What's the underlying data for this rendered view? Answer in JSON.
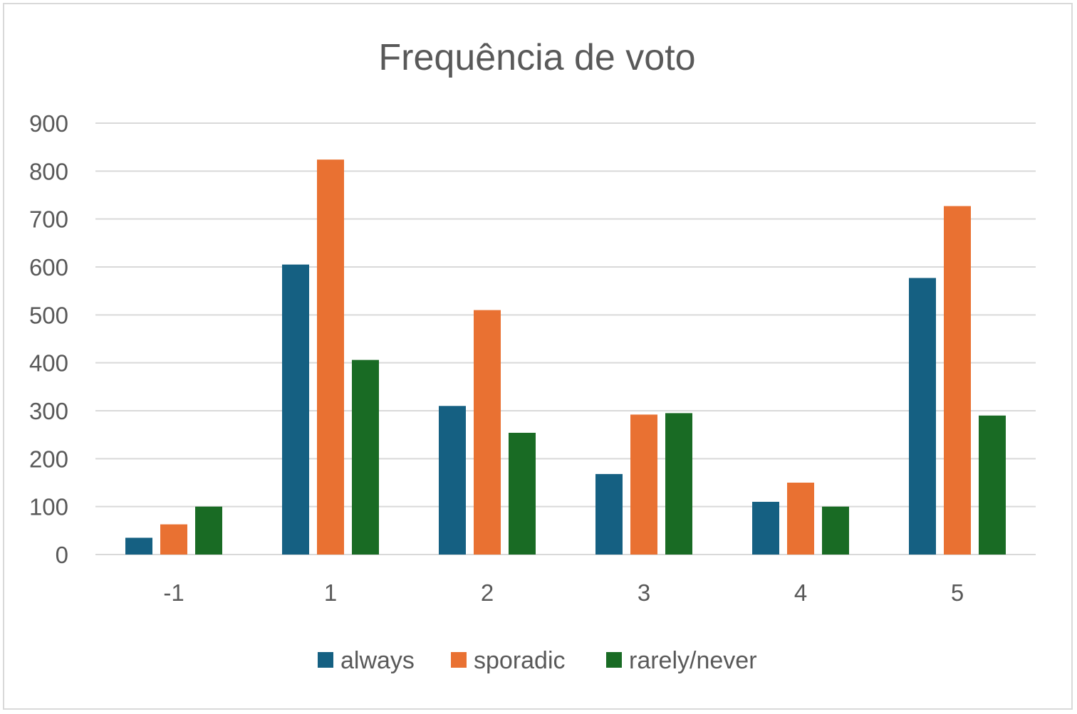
{
  "chart_data": {
    "type": "bar",
    "title": "Frequência de voto",
    "xlabel": "",
    "ylabel": "",
    "categories": [
      "-1",
      "1",
      "2",
      "3",
      "4",
      "5"
    ],
    "series": [
      {
        "name": "always",
        "color": "#156082",
        "values": [
          35,
          605,
          310,
          168,
          110,
          577
        ]
      },
      {
        "name": "sporadic",
        "color": "#E97132",
        "values": [
          63,
          824,
          510,
          292,
          150,
          727
        ]
      },
      {
        "name": "rarely/never",
        "color": "#196B24",
        "values": [
          100,
          406,
          254,
          295,
          100,
          290
        ]
      }
    ],
    "ylim": [
      0,
      900
    ],
    "yticks": [
      "0",
      "100",
      "200",
      "300",
      "400",
      "500",
      "600",
      "700",
      "800",
      "900"
    ],
    "grid": true,
    "legend_position": "bottom"
  }
}
